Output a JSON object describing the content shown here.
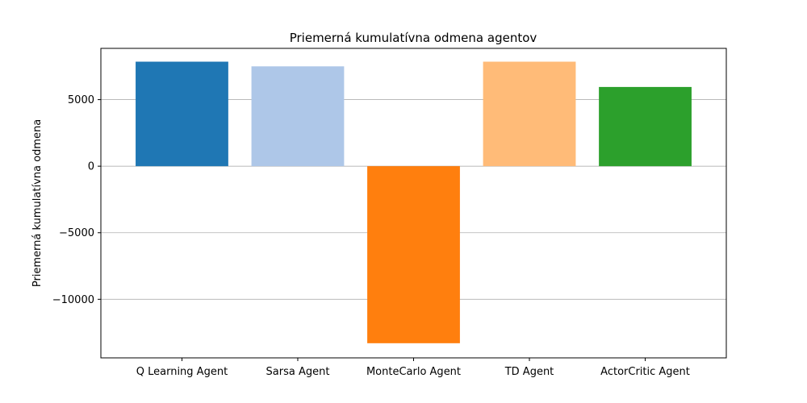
{
  "chart_data": {
    "type": "bar",
    "title": "Priemerná kumulatívna odmena agentov",
    "xlabel": "",
    "ylabel": "Priemerná kumulatívna odmena",
    "categories": [
      "Q Learning Agent",
      "Sarsa Agent",
      "MonteCarlo Agent",
      "TD Agent",
      "ActorCritic Agent"
    ],
    "values": [
      7850,
      7500,
      -13300,
      7850,
      5950
    ],
    "colors": [
      "#1f77b4",
      "#aec7e8",
      "#ff7f0e",
      "#ffbb78",
      "#2ca02c"
    ],
    "ylim": [
      -14400,
      8850
    ],
    "yticks": [
      -10000,
      -5000,
      0,
      5000
    ],
    "ytick_labels": [
      "−10000",
      "−5000",
      "0",
      "5000"
    ],
    "grid": "y",
    "legend": "none"
  }
}
